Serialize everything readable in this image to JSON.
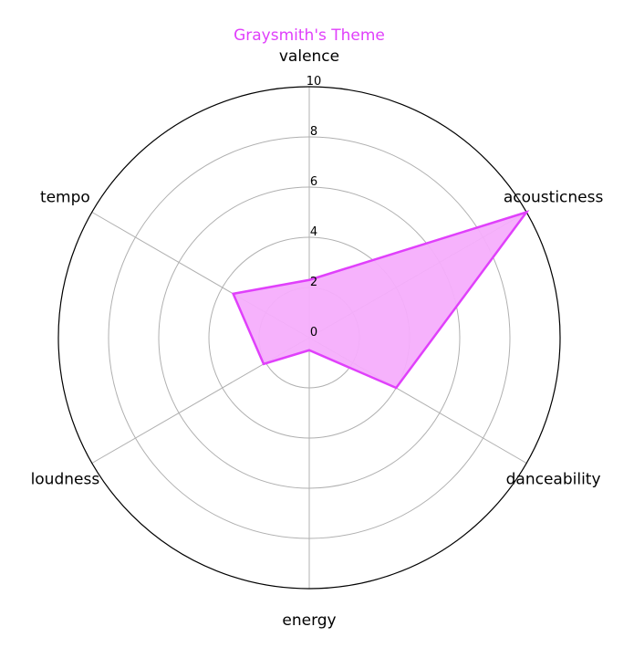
{
  "chart_data": {
    "type": "radar",
    "title": "Graysmith's Theme",
    "axes": [
      "valence",
      "acousticness",
      "danceability",
      "energy",
      "loudness",
      "tempo"
    ],
    "series": [
      {
        "values": [
          2.3,
          10.0,
          4.0,
          0.5,
          2.1,
          3.5
        ]
      }
    ],
    "rlim": [
      0,
      10
    ],
    "rticks": [
      "0",
      "2",
      "4",
      "6",
      "8",
      "10"
    ],
    "grid": true,
    "colors": {
      "series": "#e040fb",
      "fill": "#f5aefc",
      "grid": "#b0b0b0",
      "frame": "#000000"
    }
  }
}
